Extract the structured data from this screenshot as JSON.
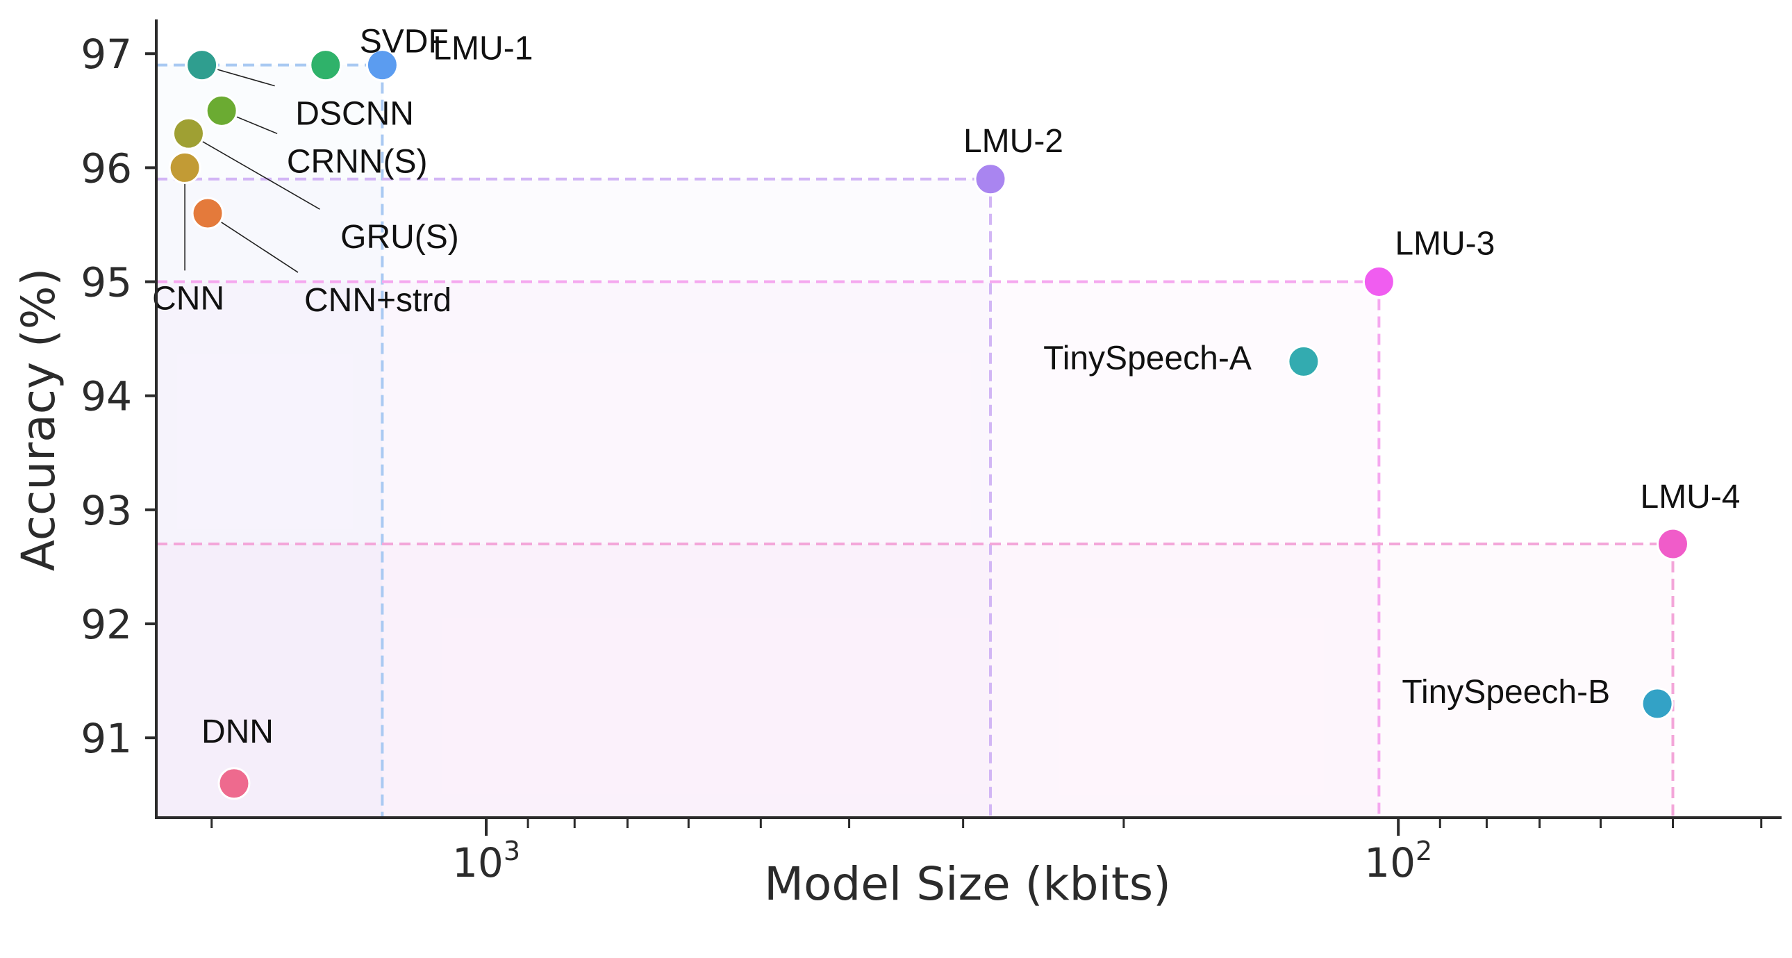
{
  "chart_data": {
    "type": "scatter",
    "title": "",
    "xlabel": "Model Size (kbits)",
    "ylabel": "Accuracy (%)",
    "x_scale": "log",
    "x_reversed": true,
    "xlim": [
      2300,
      38
    ],
    "ylim": [
      90.3,
      97.3
    ],
    "grid": false,
    "y_ticks": [
      97,
      96,
      95,
      94,
      93,
      92,
      91
    ],
    "x_major_ticks": [
      {
        "value": 1000,
        "base": "10",
        "exp": "3"
      },
      {
        "value": 100,
        "base": "10",
        "exp": "2"
      }
    ],
    "x_minor_ticks": [
      2000,
      900,
      800,
      700,
      600,
      500,
      400,
      300,
      200,
      90,
      80,
      70,
      60,
      50,
      40
    ],
    "points": [
      {
        "name": "SVDF",
        "x": 1500,
        "y": 96.9,
        "color": "#2fb26a"
      },
      {
        "name": "LMU-1",
        "x": 1300,
        "y": 96.9,
        "color": "#5b9cf0"
      },
      {
        "name": "DSCNN",
        "x": 2050,
        "y": 96.9,
        "color": "#2f9e8f"
      },
      {
        "name": "CRNN(S)",
        "x": 1950,
        "y": 96.5,
        "color": "#6bab32"
      },
      {
        "name": "GRU(S)",
        "x": 2120,
        "y": 96.3,
        "color": "#9fa033"
      },
      {
        "name": "CNN",
        "x": 2140,
        "y": 96.0,
        "color": "#c29b35"
      },
      {
        "name": "CNN+strd",
        "x": 2020,
        "y": 95.6,
        "color": "#e47a3b"
      },
      {
        "name": "DNN",
        "x": 1890,
        "y": 90.6,
        "color": "#ee6a8e"
      },
      {
        "name": "LMU-2",
        "x": 280,
        "y": 95.9,
        "color": "#a985f0"
      },
      {
        "name": "LMU-3",
        "x": 105,
        "y": 95.0,
        "color": "#f05df0"
      },
      {
        "name": "TinySpeech-A",
        "x": 127,
        "y": 94.3,
        "color": "#33abb0"
      },
      {
        "name": "TinySpeech-B",
        "x": 52,
        "y": 91.3,
        "color": "#33a2c6"
      },
      {
        "name": "LMU-4",
        "x": 50,
        "y": 92.7,
        "color": "#f05cc9"
      }
    ],
    "reference_lines": [
      {
        "series": "LMU-1",
        "x": 1300,
        "y": 96.9,
        "color": "#a9c9f2"
      },
      {
        "series": "LMU-2",
        "x": 280,
        "y": 95.9,
        "color": "#d2b6f5"
      },
      {
        "series": "LMU-3",
        "x": 105,
        "y": 95.0,
        "color": "#f5a8ef"
      },
      {
        "series": "LMU-4",
        "x": 50,
        "y": 92.7,
        "color": "#f3a6d9"
      }
    ],
    "shaded_regions": [
      {
        "series": "LMU-1",
        "color": "#a9c9f2"
      },
      {
        "series": "LMU-2",
        "color": "#d2b6f5"
      },
      {
        "series": "LMU-3",
        "color": "#f5a8ef"
      },
      {
        "series": "LMU-4",
        "color": "#f3a6d9"
      }
    ]
  }
}
